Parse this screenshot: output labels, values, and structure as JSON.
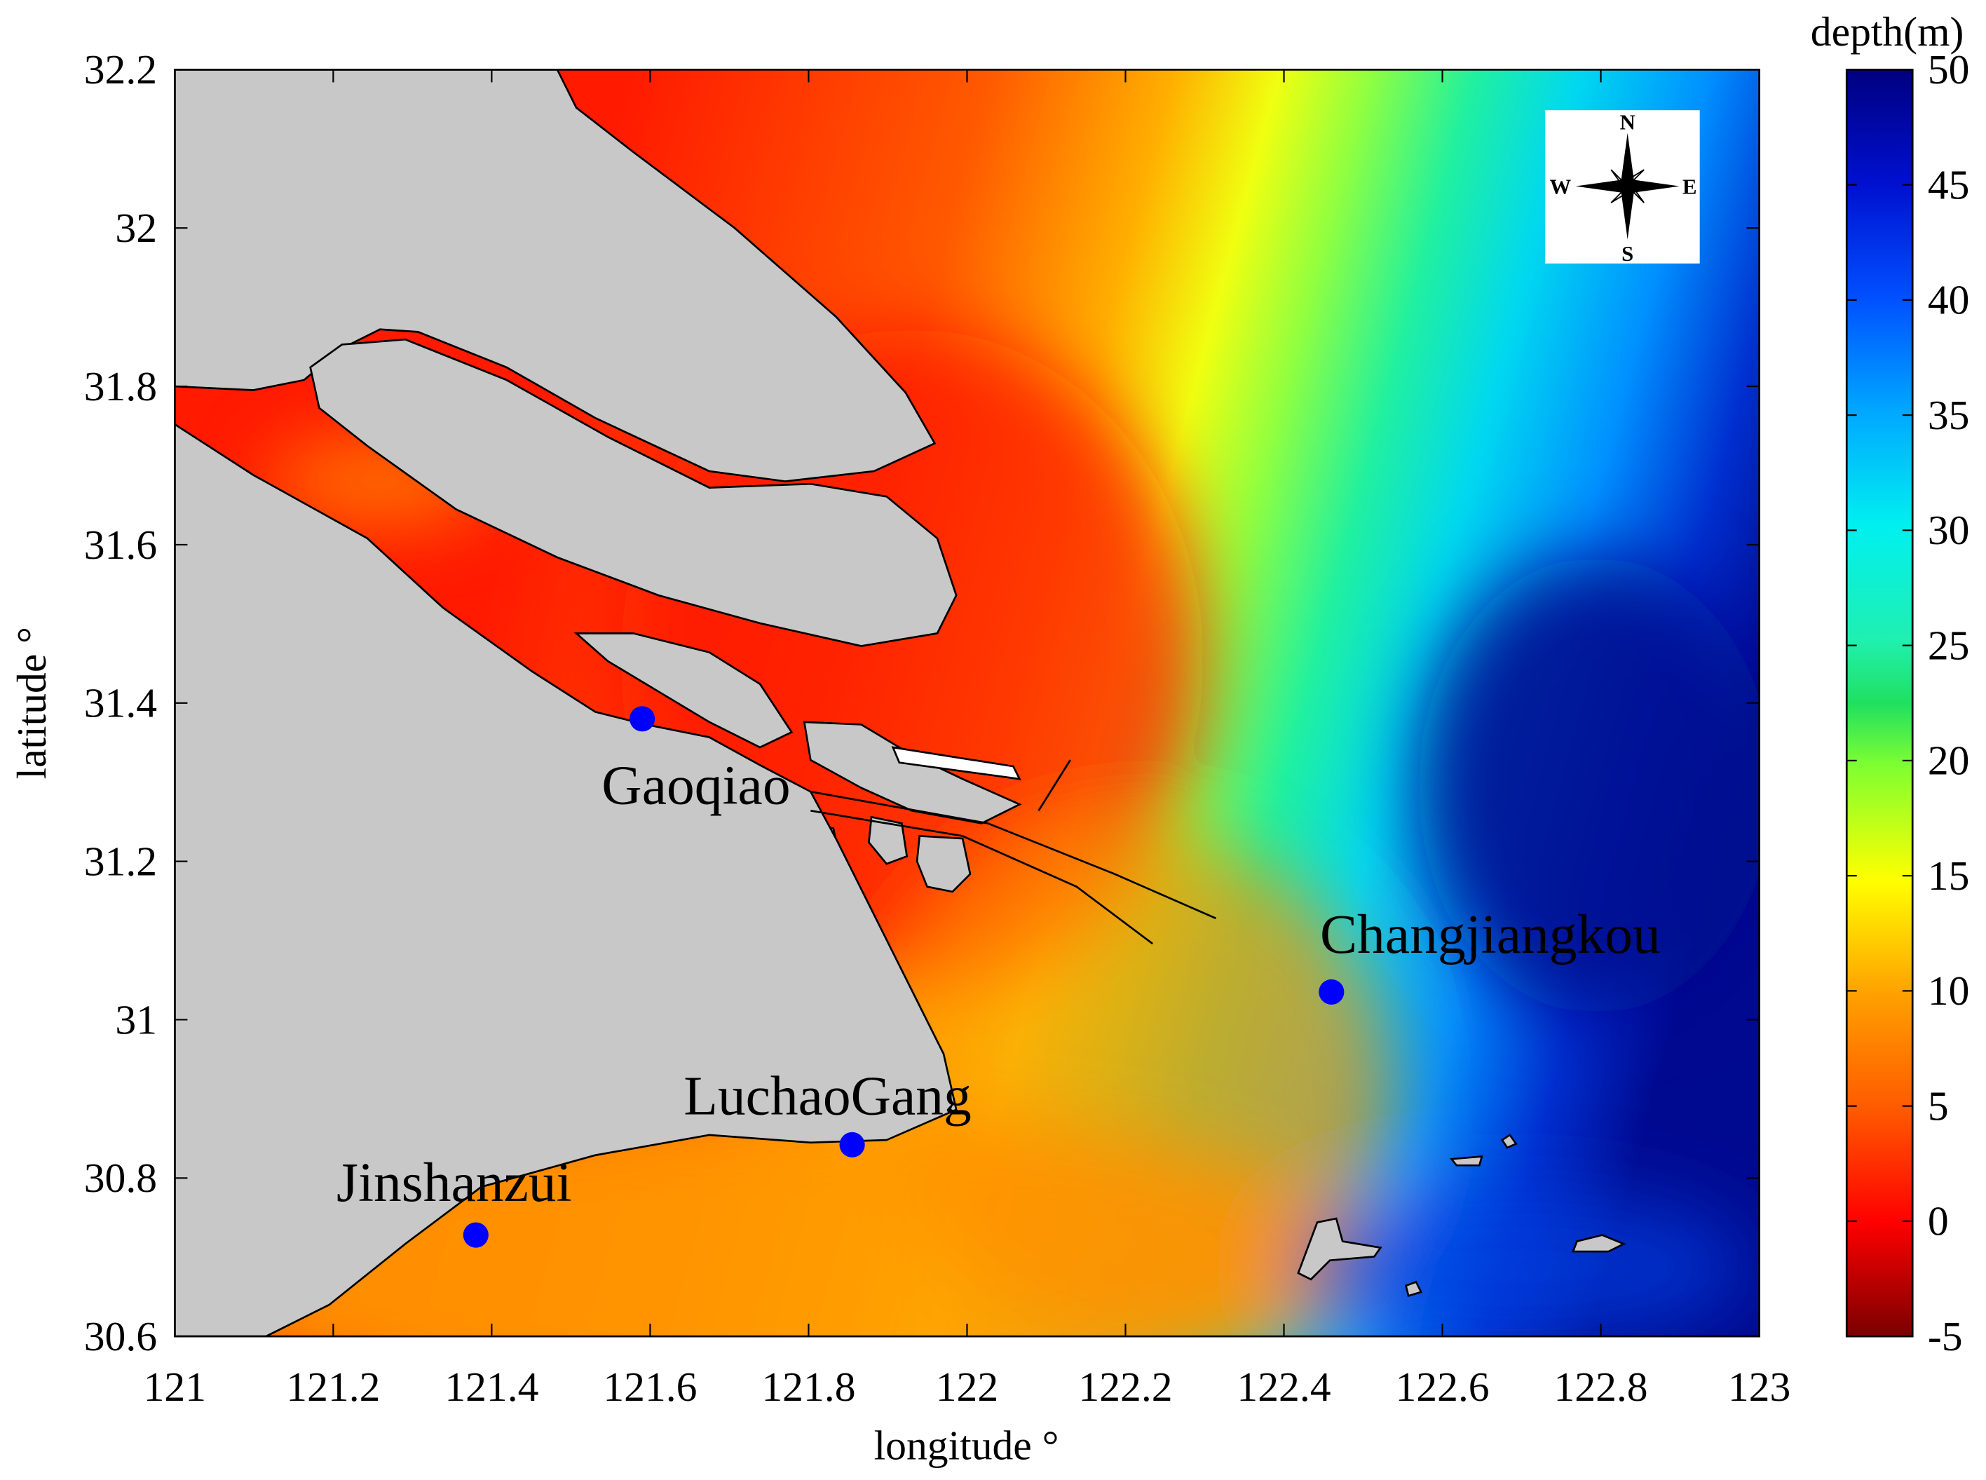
{
  "chart_data": {
    "type": "map",
    "x_label": "longitude °",
    "y_label": "latitude °",
    "xlim": [
      121,
      123
    ],
    "ylim": [
      30.6,
      32.2
    ],
    "xticks": [
      121,
      121.2,
      121.4,
      121.6,
      121.8,
      122,
      122.2,
      122.4,
      122.6,
      122.8,
      123
    ],
    "yticks": [
      30.6,
      30.8,
      31,
      31.2,
      31.4,
      31.6,
      31.8,
      32,
      32.2
    ],
    "points": [
      {
        "name": "Gaoqiao",
        "x": 121.59,
        "y": 31.38
      },
      {
        "name": "LuchaoGang",
        "x": 121.855,
        "y": 30.842
      },
      {
        "name": "Jinshanzui",
        "x": 121.38,
        "y": 30.728
      },
      {
        "name": "Changjiangkou",
        "x": 122.46,
        "y": 31.035
      }
    ],
    "point_color": "#0000ff",
    "colorbar": {
      "label": "depth(m)",
      "lim": [
        -5,
        50
      ],
      "ticks": [
        -5,
        0,
        5,
        10,
        15,
        20,
        25,
        30,
        35,
        40,
        45,
        50
      ]
    },
    "compass": {
      "north": "N",
      "south": "S",
      "east": "E",
      "west": "W"
    }
  }
}
